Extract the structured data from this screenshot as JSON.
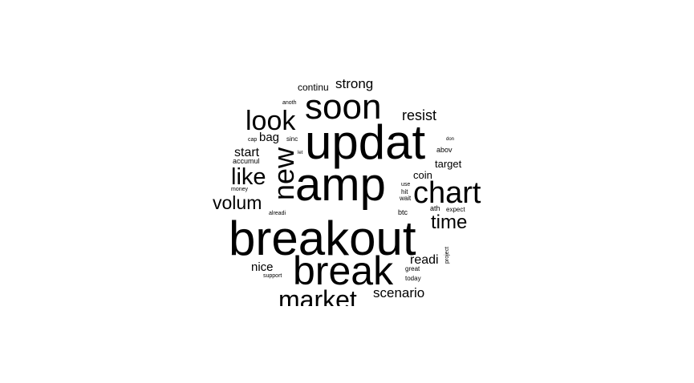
{
  "word_cloud": {
    "text_color": "#000000",
    "background_color": "#ffffff",
    "words": [
      {
        "text": "breakout"
      },
      {
        "text": "updat"
      },
      {
        "text": "amp"
      },
      {
        "text": "break"
      },
      {
        "text": "soon"
      },
      {
        "text": "chart"
      },
      {
        "text": "new"
      },
      {
        "text": "look"
      },
      {
        "text": "market"
      },
      {
        "text": "time"
      },
      {
        "text": "like"
      },
      {
        "text": "volum"
      },
      {
        "text": "resist"
      },
      {
        "text": "strong"
      },
      {
        "text": "scenario"
      },
      {
        "text": "start"
      },
      {
        "text": "readi"
      },
      {
        "text": "nice"
      },
      {
        "text": "bag"
      },
      {
        "text": "coin"
      },
      {
        "text": "target"
      },
      {
        "text": "continu"
      },
      {
        "text": "accumul"
      },
      {
        "text": "abov"
      },
      {
        "text": "btc"
      },
      {
        "text": "ath"
      },
      {
        "text": "expect"
      },
      {
        "text": "sinc"
      },
      {
        "text": "hit"
      },
      {
        "text": "wait"
      },
      {
        "text": "use"
      },
      {
        "text": "great"
      },
      {
        "text": "today"
      },
      {
        "text": "project"
      },
      {
        "text": "alreadi"
      },
      {
        "text": "support"
      },
      {
        "text": "money"
      },
      {
        "text": "anoth"
      },
      {
        "text": "cap"
      },
      {
        "text": "let"
      },
      {
        "text": "don"
      }
    ]
  }
}
